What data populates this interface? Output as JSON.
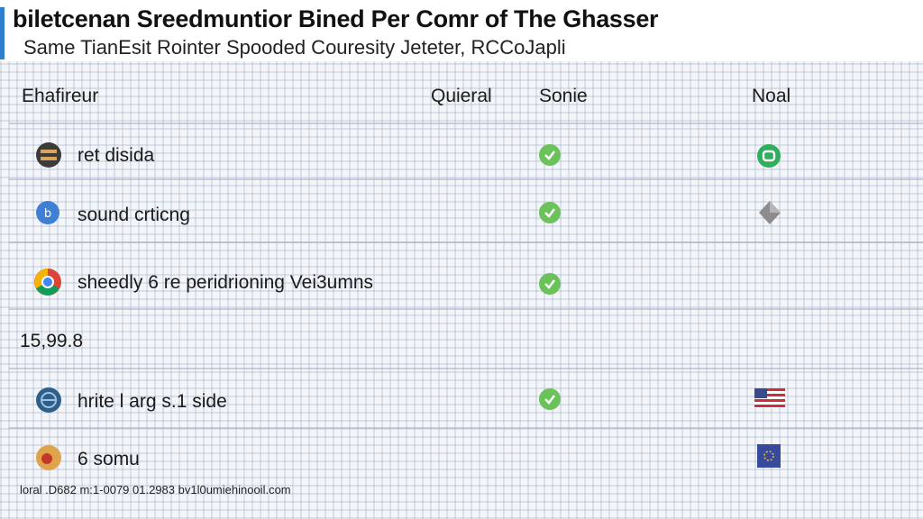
{
  "header": {
    "title": "biletcenan Sreedmuntior Bined Per Comr of The Ghasser",
    "subtitle": "Same TianEsit Rointer Spooded Couresity Jeteter, RCCoJapli"
  },
  "table": {
    "columns": [
      "Ehafireur",
      "Quieral",
      "Sonie",
      "Noal"
    ],
    "rows": [
      {
        "label": "ret disida",
        "icon": "dark-round-icon",
        "sonie": "check-icon",
        "noal": "green-ring-icon"
      },
      {
        "label": "sound crticng",
        "icon": "blue-circle-icon",
        "sonie": "check-icon",
        "noal": "gray-diamond-icon"
      },
      {
        "label": "sheedly 6 re peridrioning Vei3umns",
        "icon": "chrome-icon",
        "sonie": "check-icon",
        "noal": ""
      },
      {
        "label": "hrite l arg s.1 side",
        "icon": "globe-icon",
        "sonie": "check-icon",
        "noal": "us-flag-icon"
      },
      {
        "label": "6 somu",
        "icon": "orange-circle-icon",
        "sonie": "",
        "noal": "blue-flag-icon"
      }
    ],
    "count_label": "15,99.8"
  },
  "footer": {
    "note": "loral .D682    m:1-0079 01.2983 bv1l0umiehinooil.com"
  },
  "colors": {
    "accent": "#2f7fd0",
    "check": "#6cc25a",
    "ring": "#2fae5c"
  }
}
